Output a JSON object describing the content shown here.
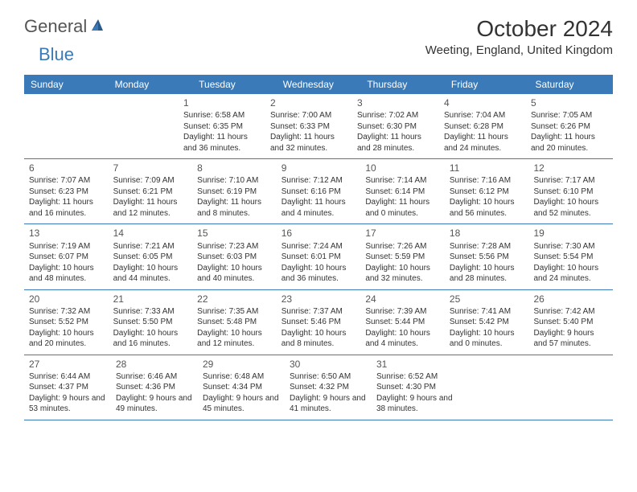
{
  "logo": {
    "text_general": "General",
    "text_blue": "Blue"
  },
  "title": "October 2024",
  "location": "Weeting, England, United Kingdom",
  "colors": {
    "header_bg": "#3a7ab8",
    "header_text": "#ffffff",
    "border": "#3a7ab8",
    "text": "#333333",
    "logo_gray": "#555555",
    "logo_blue": "#3a7ab8"
  },
  "day_headers": [
    "Sunday",
    "Monday",
    "Tuesday",
    "Wednesday",
    "Thursday",
    "Friday",
    "Saturday"
  ],
  "weeks": [
    [
      null,
      null,
      {
        "num": "1",
        "sunrise": "Sunrise: 6:58 AM",
        "sunset": "Sunset: 6:35 PM",
        "daylight": "Daylight: 11 hours and 36 minutes."
      },
      {
        "num": "2",
        "sunrise": "Sunrise: 7:00 AM",
        "sunset": "Sunset: 6:33 PM",
        "daylight": "Daylight: 11 hours and 32 minutes."
      },
      {
        "num": "3",
        "sunrise": "Sunrise: 7:02 AM",
        "sunset": "Sunset: 6:30 PM",
        "daylight": "Daylight: 11 hours and 28 minutes."
      },
      {
        "num": "4",
        "sunrise": "Sunrise: 7:04 AM",
        "sunset": "Sunset: 6:28 PM",
        "daylight": "Daylight: 11 hours and 24 minutes."
      },
      {
        "num": "5",
        "sunrise": "Sunrise: 7:05 AM",
        "sunset": "Sunset: 6:26 PM",
        "daylight": "Daylight: 11 hours and 20 minutes."
      }
    ],
    [
      {
        "num": "6",
        "sunrise": "Sunrise: 7:07 AM",
        "sunset": "Sunset: 6:23 PM",
        "daylight": "Daylight: 11 hours and 16 minutes."
      },
      {
        "num": "7",
        "sunrise": "Sunrise: 7:09 AM",
        "sunset": "Sunset: 6:21 PM",
        "daylight": "Daylight: 11 hours and 12 minutes."
      },
      {
        "num": "8",
        "sunrise": "Sunrise: 7:10 AM",
        "sunset": "Sunset: 6:19 PM",
        "daylight": "Daylight: 11 hours and 8 minutes."
      },
      {
        "num": "9",
        "sunrise": "Sunrise: 7:12 AM",
        "sunset": "Sunset: 6:16 PM",
        "daylight": "Daylight: 11 hours and 4 minutes."
      },
      {
        "num": "10",
        "sunrise": "Sunrise: 7:14 AM",
        "sunset": "Sunset: 6:14 PM",
        "daylight": "Daylight: 11 hours and 0 minutes."
      },
      {
        "num": "11",
        "sunrise": "Sunrise: 7:16 AM",
        "sunset": "Sunset: 6:12 PM",
        "daylight": "Daylight: 10 hours and 56 minutes."
      },
      {
        "num": "12",
        "sunrise": "Sunrise: 7:17 AM",
        "sunset": "Sunset: 6:10 PM",
        "daylight": "Daylight: 10 hours and 52 minutes."
      }
    ],
    [
      {
        "num": "13",
        "sunrise": "Sunrise: 7:19 AM",
        "sunset": "Sunset: 6:07 PM",
        "daylight": "Daylight: 10 hours and 48 minutes."
      },
      {
        "num": "14",
        "sunrise": "Sunrise: 7:21 AM",
        "sunset": "Sunset: 6:05 PM",
        "daylight": "Daylight: 10 hours and 44 minutes."
      },
      {
        "num": "15",
        "sunrise": "Sunrise: 7:23 AM",
        "sunset": "Sunset: 6:03 PM",
        "daylight": "Daylight: 10 hours and 40 minutes."
      },
      {
        "num": "16",
        "sunrise": "Sunrise: 7:24 AM",
        "sunset": "Sunset: 6:01 PM",
        "daylight": "Daylight: 10 hours and 36 minutes."
      },
      {
        "num": "17",
        "sunrise": "Sunrise: 7:26 AM",
        "sunset": "Sunset: 5:59 PM",
        "daylight": "Daylight: 10 hours and 32 minutes."
      },
      {
        "num": "18",
        "sunrise": "Sunrise: 7:28 AM",
        "sunset": "Sunset: 5:56 PM",
        "daylight": "Daylight: 10 hours and 28 minutes."
      },
      {
        "num": "19",
        "sunrise": "Sunrise: 7:30 AM",
        "sunset": "Sunset: 5:54 PM",
        "daylight": "Daylight: 10 hours and 24 minutes."
      }
    ],
    [
      {
        "num": "20",
        "sunrise": "Sunrise: 7:32 AM",
        "sunset": "Sunset: 5:52 PM",
        "daylight": "Daylight: 10 hours and 20 minutes."
      },
      {
        "num": "21",
        "sunrise": "Sunrise: 7:33 AM",
        "sunset": "Sunset: 5:50 PM",
        "daylight": "Daylight: 10 hours and 16 minutes."
      },
      {
        "num": "22",
        "sunrise": "Sunrise: 7:35 AM",
        "sunset": "Sunset: 5:48 PM",
        "daylight": "Daylight: 10 hours and 12 minutes."
      },
      {
        "num": "23",
        "sunrise": "Sunrise: 7:37 AM",
        "sunset": "Sunset: 5:46 PM",
        "daylight": "Daylight: 10 hours and 8 minutes."
      },
      {
        "num": "24",
        "sunrise": "Sunrise: 7:39 AM",
        "sunset": "Sunset: 5:44 PM",
        "daylight": "Daylight: 10 hours and 4 minutes."
      },
      {
        "num": "25",
        "sunrise": "Sunrise: 7:41 AM",
        "sunset": "Sunset: 5:42 PM",
        "daylight": "Daylight: 10 hours and 0 minutes."
      },
      {
        "num": "26",
        "sunrise": "Sunrise: 7:42 AM",
        "sunset": "Sunset: 5:40 PM",
        "daylight": "Daylight: 9 hours and 57 minutes."
      }
    ],
    [
      {
        "num": "27",
        "sunrise": "Sunrise: 6:44 AM",
        "sunset": "Sunset: 4:37 PM",
        "daylight": "Daylight: 9 hours and 53 minutes."
      },
      {
        "num": "28",
        "sunrise": "Sunrise: 6:46 AM",
        "sunset": "Sunset: 4:36 PM",
        "daylight": "Daylight: 9 hours and 49 minutes."
      },
      {
        "num": "29",
        "sunrise": "Sunrise: 6:48 AM",
        "sunset": "Sunset: 4:34 PM",
        "daylight": "Daylight: 9 hours and 45 minutes."
      },
      {
        "num": "30",
        "sunrise": "Sunrise: 6:50 AM",
        "sunset": "Sunset: 4:32 PM",
        "daylight": "Daylight: 9 hours and 41 minutes."
      },
      {
        "num": "31",
        "sunrise": "Sunrise: 6:52 AM",
        "sunset": "Sunset: 4:30 PM",
        "daylight": "Daylight: 9 hours and 38 minutes."
      },
      null,
      null
    ]
  ]
}
